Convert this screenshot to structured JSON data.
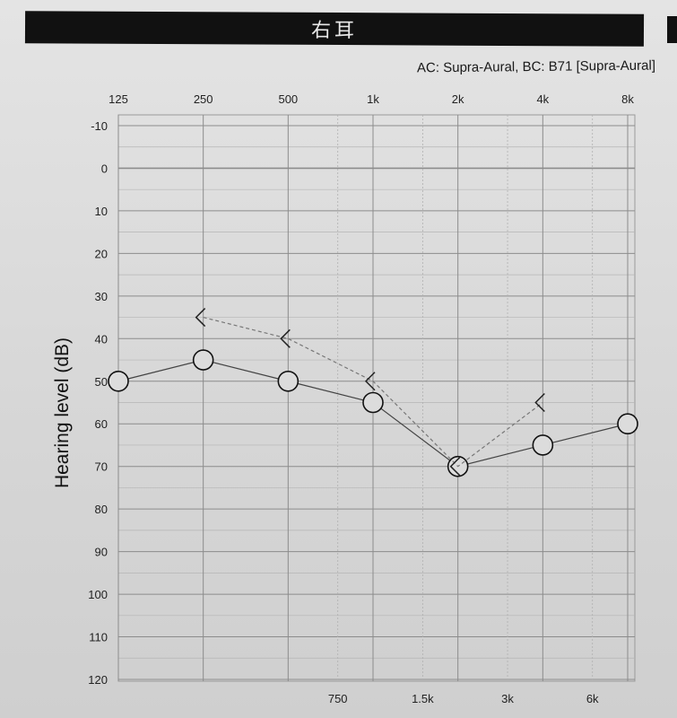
{
  "header": {
    "title": "右耳",
    "subtitle": "AC: Supra-Aural, BC: B71 [Supra-Aural]"
  },
  "chart_data": {
    "type": "line",
    "title": "右耳",
    "subtitle": "AC: Supra-Aural, BC: B71 [Supra-Aural]",
    "ylabel": "Hearing level (dB)",
    "xlabel": "",
    "x_scale": "log",
    "x_ticks_top": [
      "125",
      "250",
      "500",
      "1k",
      "2k",
      "4k",
      "8k"
    ],
    "x_tick_values_top": [
      125,
      250,
      500,
      1000,
      2000,
      4000,
      8000
    ],
    "x_ticks_bottom": [
      "750",
      "1.5k",
      "3k",
      "6k"
    ],
    "x_tick_values_bottom": [
      750,
      1500,
      3000,
      6000
    ],
    "ylim": [
      -10,
      120
    ],
    "y_inverted": true,
    "y_ticks": [
      -10,
      0,
      10,
      20,
      30,
      40,
      50,
      60,
      70,
      80,
      90,
      100,
      110,
      120
    ],
    "grid": true,
    "series": [
      {
        "marker": "circle",
        "line_style": "solid",
        "x": [
          125,
          250,
          500,
          1000,
          2000,
          4000,
          8000
        ],
        "y": [
          50,
          45,
          50,
          55,
          70,
          65,
          60
        ]
      },
      {
        "marker": "bracket-left",
        "line_style": "dashed",
        "x": [
          250,
          500,
          1000,
          2000,
          4000
        ],
        "y": [
          35,
          40,
          50,
          70,
          55
        ]
      }
    ]
  }
}
